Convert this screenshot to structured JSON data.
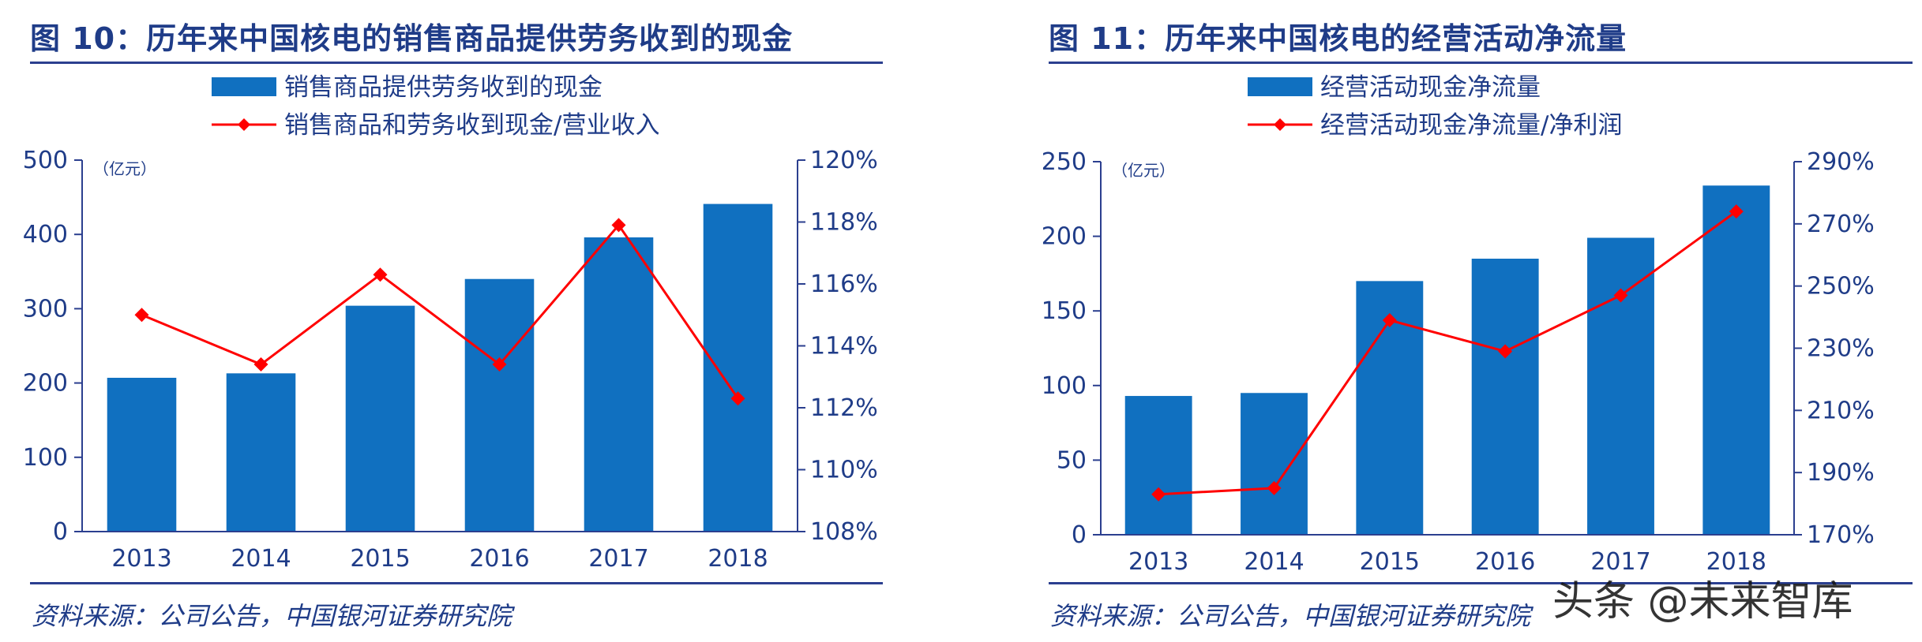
{
  "colors": {
    "bar": "#1070c0",
    "line": "#ff0000",
    "axis": "#2b3f8f",
    "text": "#1f3c88"
  },
  "watermark": "头条 @未来智库",
  "chart_data": [
    {
      "type": "bar",
      "title": "图 10：历年来中国核电的销售商品提供劳务收到的现金",
      "source": "资料来源：公司公告，中国银河证券研究院",
      "unit_label": "（亿元）",
      "categories": [
        "2013",
        "2014",
        "2015",
        "2016",
        "2017",
        "2018"
      ],
      "y_ticks": [
        "0",
        "100",
        "200",
        "300",
        "400",
        "500"
      ],
      "y2_ticks": [
        "108%",
        "110%",
        "112%",
        "114%",
        "116%",
        "118%",
        "120%"
      ],
      "ylim": [
        0,
        500
      ],
      "y2lim": [
        108,
        120
      ],
      "series": [
        {
          "name": "销售商品提供劳务收到的现金",
          "type": "bar",
          "axis": "left",
          "values": [
            207,
            213,
            304,
            340,
            396,
            441
          ]
        },
        {
          "name": "销售商品和劳务收到现金/营业收入",
          "type": "line",
          "axis": "right",
          "values": [
            115.0,
            113.4,
            116.3,
            113.4,
            117.9,
            112.3
          ]
        }
      ],
      "legend_position": "top",
      "grid": false
    },
    {
      "type": "bar",
      "title": "图 11：历年来中国核电的经营活动净流量",
      "source": "资料来源：公司公告，中国银河证券研究院",
      "unit_label": "（亿元）",
      "categories": [
        "2013",
        "2014",
        "2015",
        "2016",
        "2017",
        "2018"
      ],
      "y_ticks": [
        "0",
        "50",
        "100",
        "150",
        "200",
        "250"
      ],
      "y2_ticks": [
        "170%",
        "190%",
        "210%",
        "230%",
        "250%",
        "270%",
        "290%"
      ],
      "ylim": [
        0,
        250
      ],
      "y2lim": [
        170,
        290
      ],
      "series": [
        {
          "name": "经营活动现金净流量",
          "type": "bar",
          "axis": "left",
          "values": [
            93,
            95,
            170,
            185,
            199,
            234
          ]
        },
        {
          "name": "经营活动现金净流量/净利润",
          "type": "line",
          "axis": "right",
          "values": [
            183,
            185,
            239,
            229,
            247,
            274
          ]
        }
      ],
      "legend_position": "top",
      "grid": false
    }
  ]
}
